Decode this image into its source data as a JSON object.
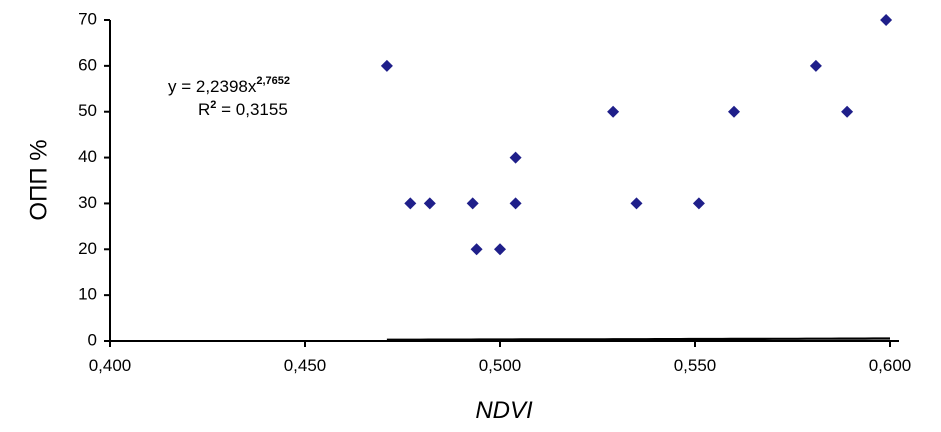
{
  "chart_data": {
    "type": "scatter",
    "title": "",
    "xlabel": "NDVI",
    "ylabel": "ОПП %",
    "xlim": [
      0.4,
      0.6
    ],
    "ylim": [
      0,
      70
    ],
    "x_ticks": [
      "0,400",
      "0,450",
      "0,500",
      "0,550",
      "0,600"
    ],
    "y_ticks": [
      "0",
      "10",
      "20",
      "30",
      "40",
      "50",
      "60",
      "70"
    ],
    "grid": false,
    "marker_color": "#1f1f8a",
    "trendline_color": "#000000",
    "series": [
      {
        "points": [
          {
            "x": 0.471,
            "y": 60
          },
          {
            "x": 0.477,
            "y": 30
          },
          {
            "x": 0.482,
            "y": 30
          },
          {
            "x": 0.493,
            "y": 30
          },
          {
            "x": 0.494,
            "y": 20
          },
          {
            "x": 0.5,
            "y": 20
          },
          {
            "x": 0.504,
            "y": 30
          },
          {
            "x": 0.504,
            "y": 40
          },
          {
            "x": 0.529,
            "y": 50
          },
          {
            "x": 0.535,
            "y": 30
          },
          {
            "x": 0.551,
            "y": 30
          },
          {
            "x": 0.56,
            "y": 50
          },
          {
            "x": 0.581,
            "y": 60
          },
          {
            "x": 0.589,
            "y": 50
          },
          {
            "x": 0.599,
            "y": 70
          }
        ]
      }
    ],
    "trendline": {
      "type": "power",
      "coefficient": 2.2398,
      "exponent": 2.7652,
      "x_range": [
        0.471,
        0.6
      ]
    },
    "annotation": {
      "equation_base": "y = 2,2398x",
      "equation_exp": "2,7652",
      "r2_prefix": "R",
      "r2_exp": "2",
      "r2_rest": " = 0,3155"
    }
  }
}
